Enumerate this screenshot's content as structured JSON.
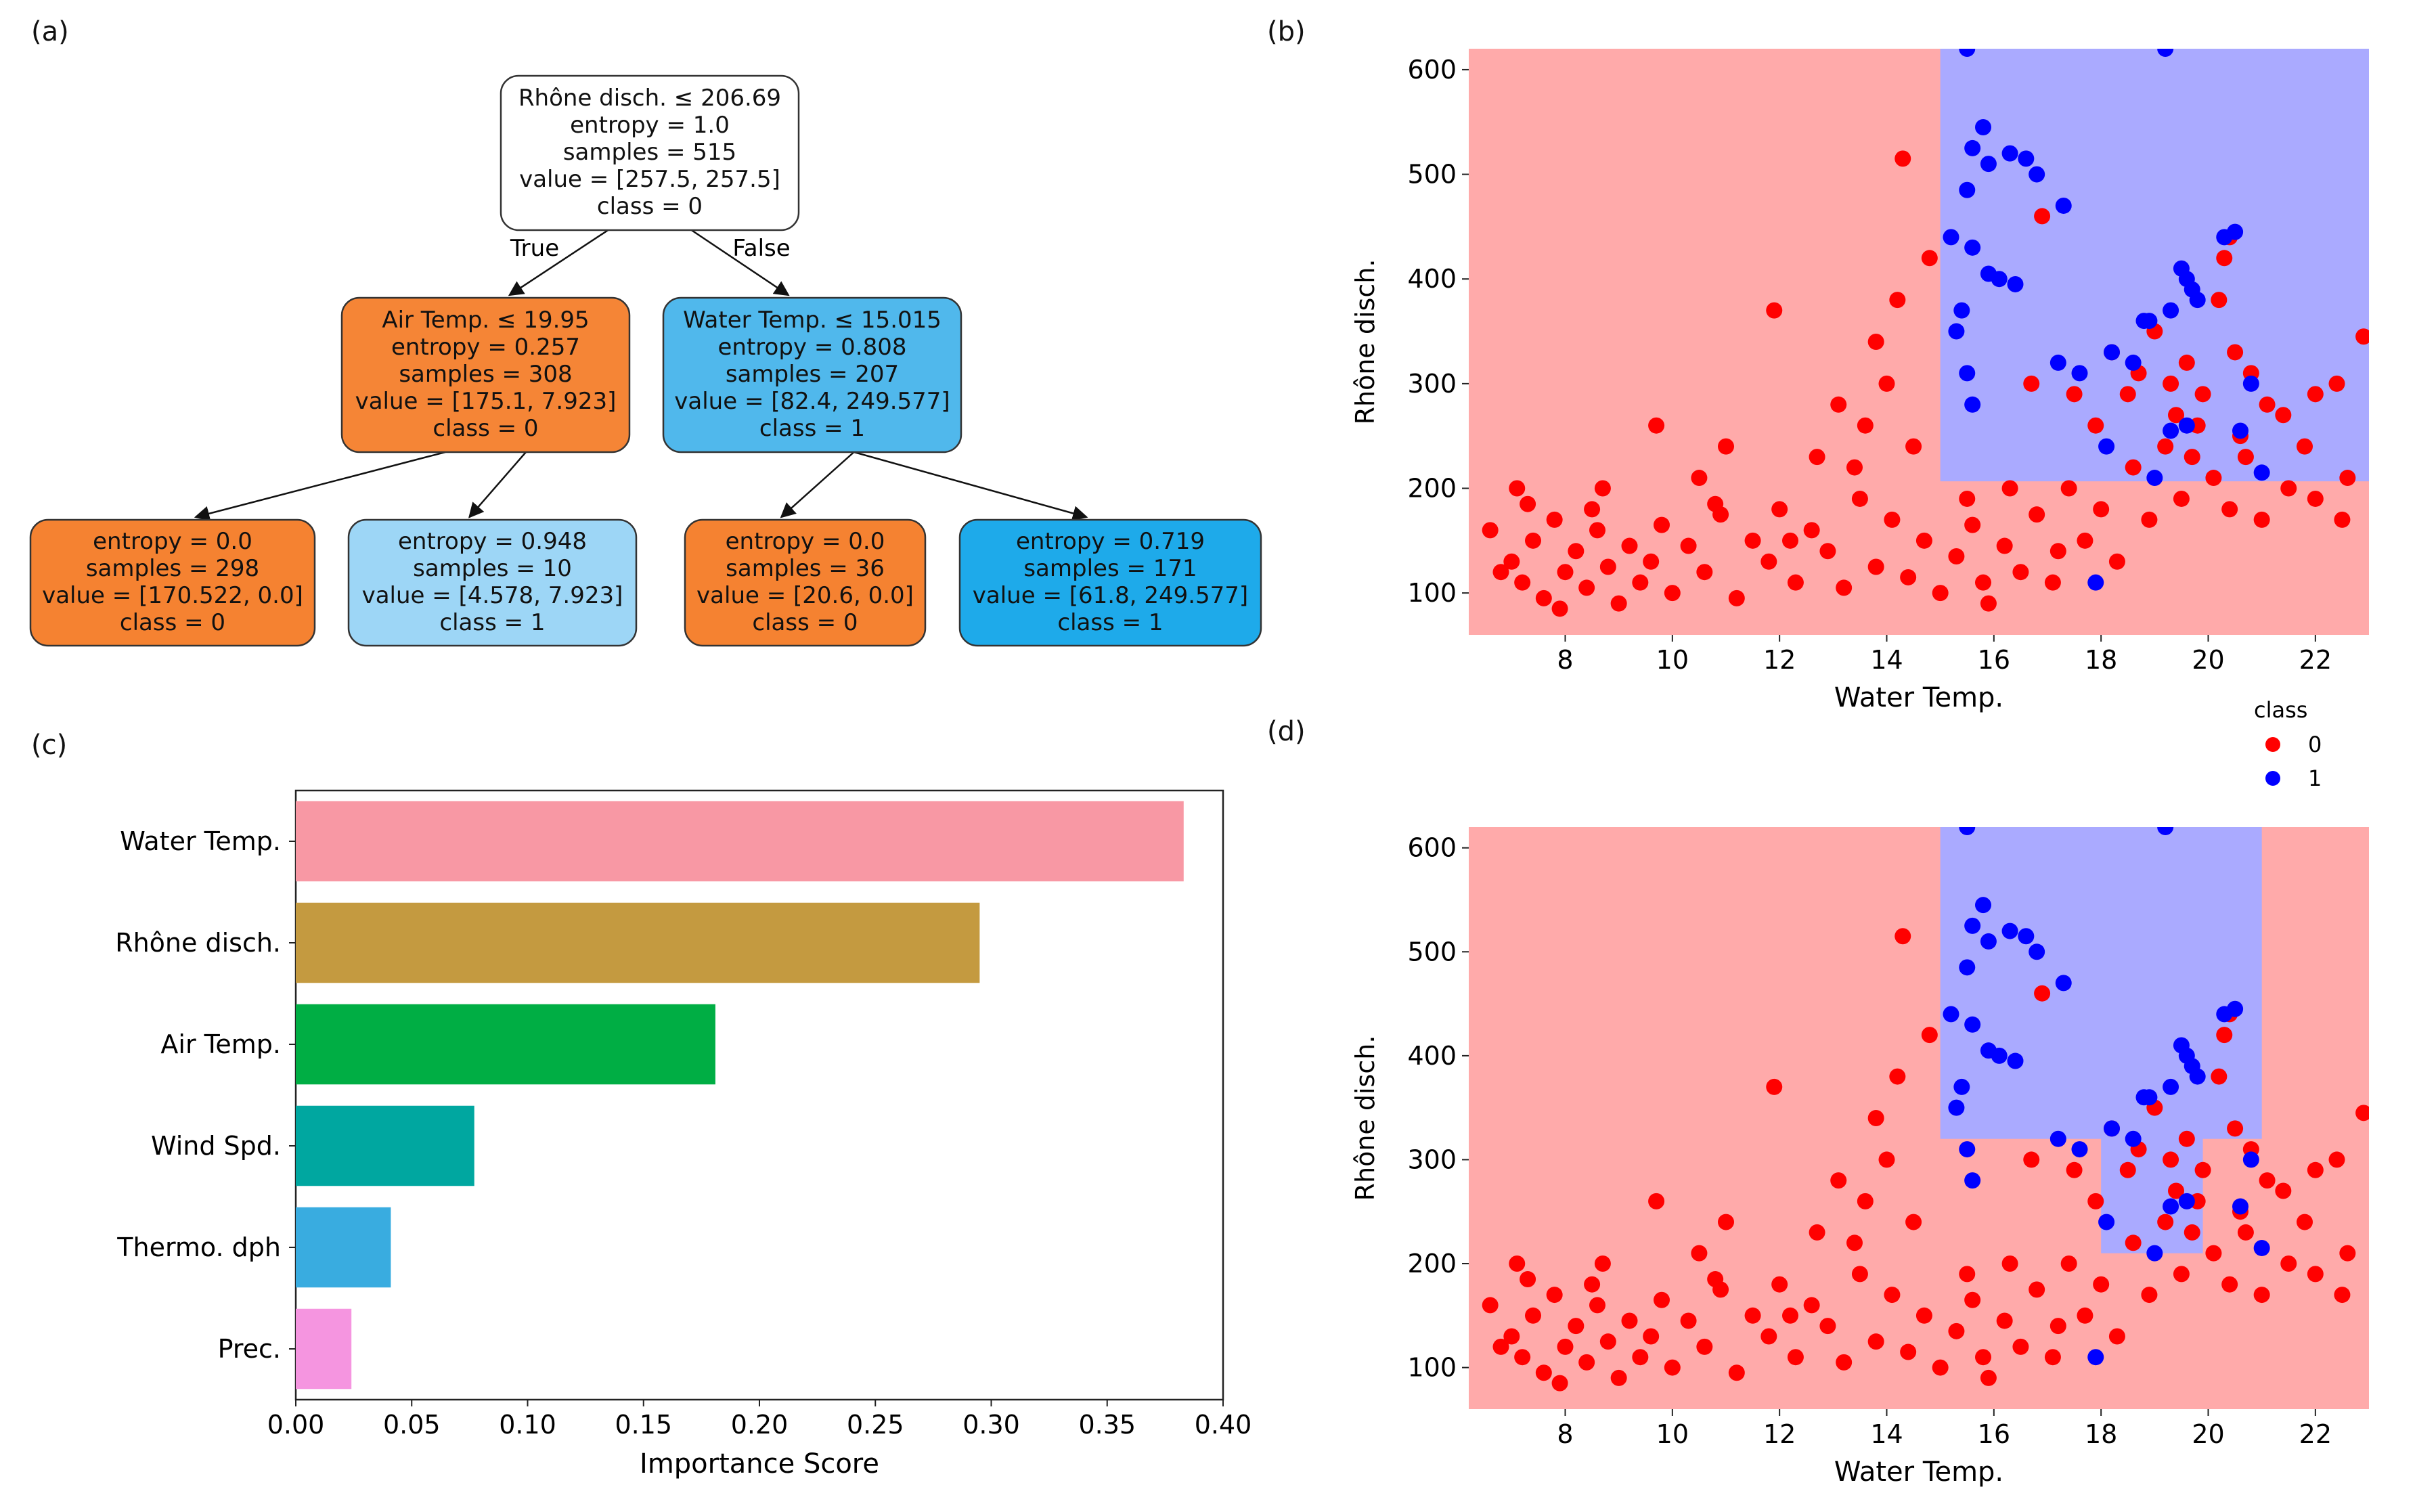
{
  "panels": {
    "a": "(a)",
    "b": "(b)",
    "c": "(c)",
    "d": "(d)"
  },
  "tree": {
    "nodes": [
      {
        "id": "root",
        "lines": [
          "Rhône disch. ≤ 206.69",
          "entropy = 1.0",
          "samples = 515",
          "value = [257.5, 257.5]",
          "class = 0"
        ],
        "color": "#ffffff"
      },
      {
        "id": "left",
        "lines": [
          "Air Temp. ≤ 19.95",
          "entropy = 0.257",
          "samples = 308",
          "value = [175.1, 7.923]",
          "class = 0"
        ],
        "color": "#f58536"
      },
      {
        "id": "right",
        "lines": [
          "Water Temp. ≤ 15.015",
          "entropy = 0.808",
          "samples = 207",
          "value = [82.4, 249.577]",
          "class = 1"
        ],
        "color": "#50b8ec"
      },
      {
        "id": "ll",
        "lines": [
          "entropy = 0.0",
          "samples = 298",
          "value = [170.522, 0.0]",
          "class = 0"
        ],
        "color": "#f58231"
      },
      {
        "id": "lr",
        "lines": [
          "entropy = 0.948",
          "samples = 10",
          "value = [4.578, 7.923]",
          "class = 1"
        ],
        "color": "#9dd6f6"
      },
      {
        "id": "rl",
        "lines": [
          "entropy = 0.0",
          "samples = 36",
          "value = [20.6, 0.0]",
          "class = 0"
        ],
        "color": "#f58231"
      },
      {
        "id": "rr",
        "lines": [
          "entropy = 0.719",
          "samples = 171",
          "value = [61.8, 249.577]",
          "class = 1"
        ],
        "color": "#1eaaea"
      }
    ],
    "true_label": "True",
    "false_label": "False"
  },
  "scatter": {
    "xlabel": "Water Temp.",
    "ylabel": "Rhône disch.",
    "xlim": [
      6.2,
      23
    ],
    "ylim": [
      60,
      620
    ],
    "xticks": [
      8,
      10,
      12,
      14,
      16,
      18,
      20,
      22
    ],
    "yticks": [
      100,
      200,
      300,
      400,
      500,
      600
    ],
    "legend_title": "class",
    "legend_items": [
      {
        "label": "0",
        "color": "#ff0000"
      },
      {
        "label": "1",
        "color": "#0000ff"
      }
    ],
    "bg_class0": "#ffaaaa",
    "bg_class1": "#aaaaff"
  },
  "chart_data": [
    {
      "type": "bar",
      "orientation": "horizontal",
      "categories": [
        "Water Temp.",
        "Rhône disch.",
        "Air Temp.",
        "Wind Spd.",
        "Thermo. dph",
        "Prec."
      ],
      "values": [
        0.383,
        0.295,
        0.181,
        0.077,
        0.041,
        0.024
      ],
      "colors": [
        "#f898a4",
        "#c49a40",
        "#00ae44",
        "#00a7a0",
        "#39ace0",
        "#f595e0"
      ],
      "xlabel": "Importance Score",
      "xlim": [
        0,
        0.4
      ],
      "xticks": [
        "0.00",
        "0.05",
        "0.10",
        "0.15",
        "0.20",
        "0.25",
        "0.30",
        "0.35",
        "0.40"
      ]
    },
    {
      "type": "scatter",
      "panel": "b",
      "title": "",
      "xlabel": "Water Temp.",
      "ylabel": "Rhône disch.",
      "xlim": [
        6.2,
        23
      ],
      "ylim": [
        60,
        620
      ],
      "decision_regions": [
        {
          "class": 1,
          "x": [
            15.0,
            23.0
          ],
          "y": [
            206.7,
            620
          ]
        }
      ],
      "series": [
        {
          "name": "0",
          "color": "#ff0000",
          "points": [
            [
              7.0,
              130
            ],
            [
              7.2,
              110
            ],
            [
              7.4,
              150
            ],
            [
              7.6,
              95
            ],
            [
              7.8,
              170
            ],
            [
              8.0,
              120
            ],
            [
              8.2,
              140
            ],
            [
              8.4,
              105
            ],
            [
              8.6,
              160
            ],
            [
              8.8,
              125
            ],
            [
              9.0,
              90
            ],
            [
              9.2,
              145
            ],
            [
              7.3,
              185
            ],
            [
              7.9,
              85
            ],
            [
              8.5,
              180
            ],
            [
              6.8,
              120
            ],
            [
              6.6,
              160
            ],
            [
              9.4,
              110
            ],
            [
              9.6,
              130
            ],
            [
              9.8,
              165
            ],
            [
              10.0,
              100
            ],
            [
              10.3,
              145
            ],
            [
              10.6,
              120
            ],
            [
              10.9,
              175
            ],
            [
              11.2,
              95
            ],
            [
              11.5,
              150
            ],
            [
              11.8,
              130
            ],
            [
              12.0,
              180
            ],
            [
              12.3,
              110
            ],
            [
              12.6,
              160
            ],
            [
              12.9,
              140
            ],
            [
              13.2,
              105
            ],
            [
              13.5,
              190
            ],
            [
              13.8,
              125
            ],
            [
              14.1,
              170
            ],
            [
              14.4,
              115
            ],
            [
              14.7,
              150
            ],
            [
              15.0,
              100
            ],
            [
              15.3,
              135
            ],
            [
              15.6,
              165
            ],
            [
              15.9,
              90
            ],
            [
              16.2,
              145
            ],
            [
              16.5,
              120
            ],
            [
              16.8,
              175
            ],
            [
              17.1,
              110
            ],
            [
              17.4,
              200
            ],
            [
              17.7,
              150
            ],
            [
              18.0,
              180
            ],
            [
              18.3,
              130
            ],
            [
              18.6,
              220
            ],
            [
              18.9,
              170
            ],
            [
              19.2,
              240
            ],
            [
              19.5,
              190
            ],
            [
              19.8,
              260
            ],
            [
              20.1,
              210
            ],
            [
              20.4,
              180
            ],
            [
              20.7,
              230
            ],
            [
              21.0,
              170
            ],
            [
              21.5,
              200
            ],
            [
              22.0,
              190
            ],
            [
              22.5,
              170
            ],
            [
              11.9,
              370
            ],
            [
              13.1,
              280
            ],
            [
              13.8,
              340
            ],
            [
              14.2,
              380
            ],
            [
              14.5,
              240
            ],
            [
              13.6,
              260
            ],
            [
              12.7,
              230
            ],
            [
              11.0,
              240
            ],
            [
              10.5,
              210
            ],
            [
              9.7,
              260
            ],
            [
              14.8,
              420
            ],
            [
              14.3,
              515
            ],
            [
              15.5,
              190
            ],
            [
              16.3,
              200
            ],
            [
              16.9,
              460
            ],
            [
              17.5,
              290
            ],
            [
              18.2,
              330
            ],
            [
              18.7,
              310
            ],
            [
              19.0,
              350
            ],
            [
              19.3,
              300
            ],
            [
              19.6,
              320
            ],
            [
              19.9,
              290
            ],
            [
              20.2,
              380
            ],
            [
              20.5,
              330
            ],
            [
              20.8,
              310
            ],
            [
              21.1,
              280
            ],
            [
              21.4,
              270
            ],
            [
              22.0,
              290
            ],
            [
              22.4,
              300
            ],
            [
              22.9,
              345
            ],
            [
              20.3,
              420
            ],
            [
              20.4,
              440
            ],
            [
              19.4,
              270
            ],
            [
              18.5,
              290
            ],
            [
              17.9,
              260
            ],
            [
              16.7,
              300
            ],
            [
              15.8,
              110
            ],
            [
              17.2,
              140
            ],
            [
              12.2,
              150
            ],
            [
              10.8,
              185
            ],
            [
              8.7,
              200
            ],
            [
              7.1,
              200
            ],
            [
              14.0,
              300
            ],
            [
              13.4,
              220
            ],
            [
              19.7,
              230
            ],
            [
              20.6,
              250
            ],
            [
              21.8,
              240
            ],
            [
              22.6,
              210
            ]
          ]
        },
        {
          "name": "1",
          "color": "#0000ff",
          "points": [
            [
              15.5,
              620
            ],
            [
              19.2,
              620
            ],
            [
              15.8,
              545
            ],
            [
              15.6,
              525
            ],
            [
              15.9,
              510
            ],
            [
              16.3,
              520
            ],
            [
              16.6,
              515
            ],
            [
              15.5,
              485
            ],
            [
              16.8,
              500
            ],
            [
              17.3,
              470
            ],
            [
              15.2,
              440
            ],
            [
              15.6,
              430
            ],
            [
              15.9,
              405
            ],
            [
              16.1,
              400
            ],
            [
              16.4,
              395
            ],
            [
              15.4,
              370
            ],
            [
              15.3,
              350
            ],
            [
              15.5,
              310
            ],
            [
              15.6,
              280
            ],
            [
              17.2,
              320
            ],
            [
              17.6,
              310
            ],
            [
              18.2,
              330
            ],
            [
              18.6,
              320
            ],
            [
              18.9,
              360
            ],
            [
              19.3,
              370
            ],
            [
              19.6,
              400
            ],
            [
              19.8,
              380
            ],
            [
              20.3,
              440
            ],
            [
              20.5,
              445
            ],
            [
              20.8,
              300
            ],
            [
              20.6,
              255
            ],
            [
              19.3,
              255
            ],
            [
              19.0,
              210
            ],
            [
              18.1,
              240
            ],
            [
              17.9,
              110
            ],
            [
              19.6,
              260
            ],
            [
              21.0,
              215
            ],
            [
              18.8,
              360
            ],
            [
              19.5,
              410
            ],
            [
              19.7,
              390
            ]
          ]
        }
      ]
    },
    {
      "type": "scatter",
      "panel": "d",
      "title": "",
      "xlabel": "Water Temp.",
      "ylabel": "Rhône disch.",
      "xlim": [
        6.2,
        23
      ],
      "ylim": [
        60,
        620
      ],
      "decision_regions": [
        {
          "class": 1,
          "x": [
            15.0,
            21.0
          ],
          "y": [
            320,
            620
          ]
        },
        {
          "class": 1,
          "x": [
            18.0,
            19.9
          ],
          "y": [
            210,
            390
          ]
        }
      ],
      "legend_title": "class",
      "legend": [
        "0",
        "1"
      ]
    }
  ]
}
